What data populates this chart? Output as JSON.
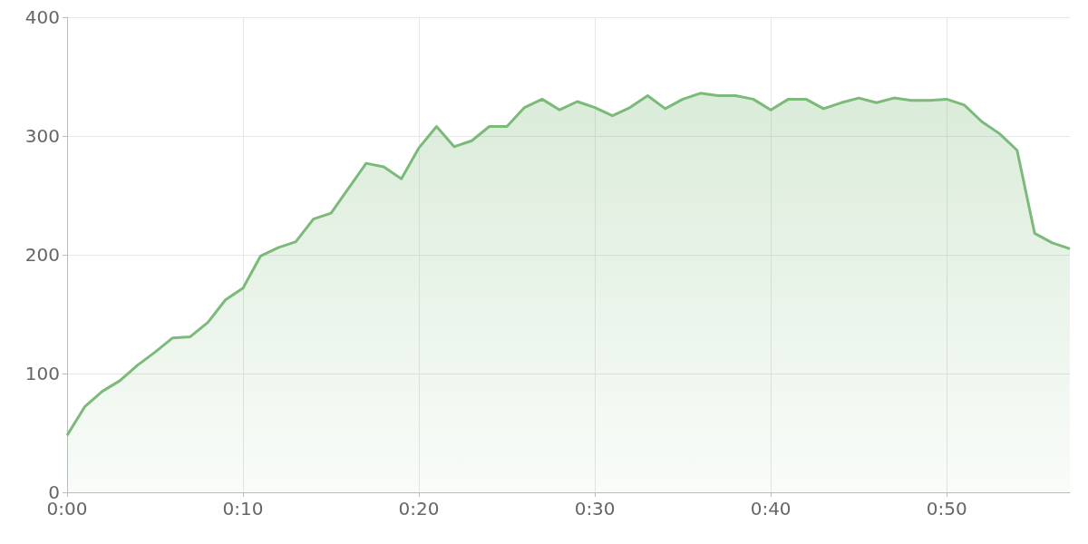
{
  "chart_data": {
    "type": "area",
    "x": [
      0,
      1,
      2,
      3,
      4,
      5,
      6,
      7,
      8,
      9,
      10,
      11,
      12,
      13,
      14,
      15,
      16,
      17,
      18,
      19,
      20,
      21,
      22,
      23,
      24,
      25,
      26,
      27,
      28,
      29,
      30,
      31,
      32,
      33,
      34,
      35,
      36,
      37,
      38,
      39,
      40,
      41,
      42,
      43,
      44,
      45,
      46,
      47,
      48,
      49,
      50,
      51,
      52,
      53,
      54,
      55,
      56,
      57
    ],
    "values": [
      48,
      72,
      85,
      94,
      107,
      118,
      130,
      131,
      143,
      162,
      172,
      199,
      206,
      211,
      230,
      235,
      256,
      277,
      274,
      264,
      290,
      308,
      291,
      296,
      308,
      308,
      324,
      331,
      322,
      329,
      324,
      317,
      324,
      334,
      323,
      331,
      336,
      334,
      334,
      331,
      322,
      331,
      331,
      323,
      328,
      332,
      328,
      332,
      330,
      330,
      331,
      326,
      312,
      302,
      288,
      218,
      210,
      205
    ],
    "color": "#7cba7a",
    "marker": "none",
    "line_style": "solid",
    "grid": true,
    "xlim": [
      0,
      57
    ],
    "xticks": [
      {
        "value": 0,
        "label": "0:00"
      },
      {
        "value": 10,
        "label": "0:10"
      },
      {
        "value": 20,
        "label": "0:20"
      },
      {
        "value": 30,
        "label": "0:30"
      },
      {
        "value": 40,
        "label": "0:40"
      },
      {
        "value": 50,
        "label": "0:50"
      }
    ],
    "ylim": [
      0,
      400
    ],
    "yticks": [
      0,
      100,
      200,
      300,
      400
    ]
  }
}
